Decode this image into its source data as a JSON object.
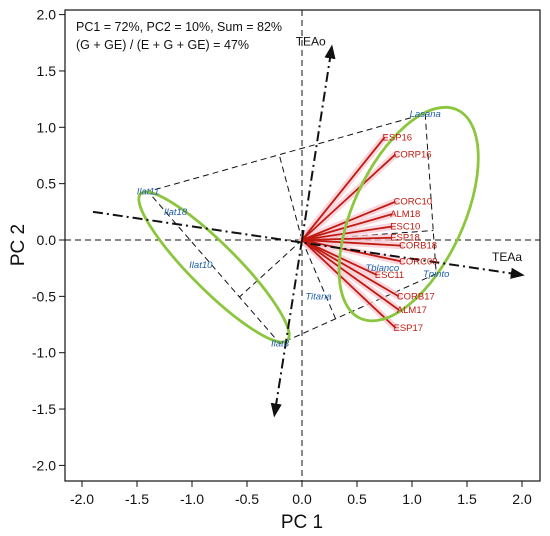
{
  "chart_data": {
    "type": "scatter",
    "subtype": "GGE biplot",
    "xlabel": "PC 1",
    "ylabel": "PC 2",
    "xlim": [
      -2.0,
      2.0
    ],
    "ylim": [
      -2.0,
      2.0
    ],
    "xticks": [
      "-2.0",
      "-1.5",
      "-1.0",
      "-0.5",
      "0.0",
      "0.5",
      "1.0",
      "1.5",
      "2.0"
    ],
    "yticks": [
      "2.0",
      "1.5",
      "1.0",
      "0.5",
      "0.0",
      "-0.5",
      "-1.0",
      "-1.5",
      "-2.0"
    ],
    "annotation_line1": "PC1 =  72%, PC2 = 10%, Sum = 82%",
    "annotation_line2": "(G + GE) / (E + G + GE) = 47%",
    "environments": [
      {
        "name": "ESP16",
        "x": 0.75,
        "y": 0.91
      },
      {
        "name": "CORP16",
        "x": 0.85,
        "y": 0.76
      },
      {
        "name": "CORC10",
        "x": 0.85,
        "y": 0.34
      },
      {
        "name": "ALM18",
        "x": 0.82,
        "y": 0.23
      },
      {
        "name": "ESC10",
        "x": 0.82,
        "y": 0.12
      },
      {
        "name": "ESP18",
        "x": 0.82,
        "y": 0.02
      },
      {
        "name": "CORB18",
        "x": 0.9,
        "y": -0.05
      },
      {
        "name": "CORC09",
        "x": 0.9,
        "y": -0.19
      },
      {
        "name": "ESC11",
        "x": 0.68,
        "y": -0.31
      },
      {
        "name": "CORB17",
        "x": 0.88,
        "y": -0.5
      },
      {
        "name": "ALM17",
        "x": 0.88,
        "y": -0.62
      },
      {
        "name": "ESP17",
        "x": 0.85,
        "y": -0.78
      }
    ],
    "genotypes": [
      {
        "name": "Lasana",
        "x": 1.12,
        "y": 1.12
      },
      {
        "name": "Ilat11",
        "x": -1.4,
        "y": 0.43
      },
      {
        "name": "Ilat18",
        "x": -1.15,
        "y": 0.25
      },
      {
        "name": "Ilat10",
        "x": -0.92,
        "y": -0.22
      },
      {
        "name": "Ilat3",
        "x": -0.2,
        "y": -0.92
      },
      {
        "name": "Tblanco",
        "x": 0.73,
        "y": -0.25
      },
      {
        "name": "Tpinto",
        "x": 1.22,
        "y": -0.3
      },
      {
        "name": "Titana",
        "x": 0.15,
        "y": -0.5
      }
    ],
    "polygon": [
      {
        "x": 1.12,
        "y": 1.12
      },
      {
        "x": 1.22,
        "y": -0.3
      },
      {
        "x": -0.2,
        "y": -0.92
      },
      {
        "x": -1.4,
        "y": 0.43
      }
    ],
    "polygon_note": "convex hull vertices: Lasana, Tpinto, Ilat3, Ilat11",
    "average_environment_axis": {
      "abscissa_label": "TEAa",
      "ordinate_label": "TEAo",
      "abscissa": {
        "from": [
          -1.9,
          0.25
        ],
        "to": [
          2.0,
          -0.31
        ]
      },
      "ordinate": {
        "from": [
          -0.25,
          -1.55
        ],
        "to": [
          0.27,
          1.71
        ]
      }
    },
    "ellipses": [
      {
        "cx": 0.97,
        "cy": 0.23,
        "rx": 0.5,
        "ry": 1.02,
        "rotate_deg": 25
      },
      {
        "cx": -0.8,
        "cy": -0.24,
        "rx": 0.21,
        "ry": 0.92,
        "rotate_deg": -45
      }
    ],
    "colors": {
      "environment": "#c01a10",
      "genotype": "#1f5fa8",
      "ellipse": "#8cc63f",
      "highlight": "#f7c9d4",
      "axes": "#111111"
    }
  }
}
